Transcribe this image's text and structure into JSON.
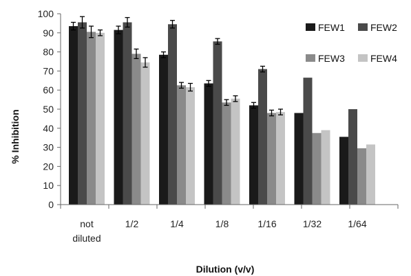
{
  "chart_data": {
    "type": "bar",
    "title": "",
    "xlabel": "Dilution (v/v)",
    "ylabel": "% Inhibition",
    "ylim": [
      0,
      100
    ],
    "yticks": [
      0,
      10,
      20,
      30,
      40,
      50,
      60,
      70,
      80,
      90,
      100
    ],
    "grid": false,
    "legend_position": "top-right",
    "categories": [
      [
        "not",
        "diluted"
      ],
      [
        "1/2"
      ],
      [
        "1/4"
      ],
      [
        "1/8"
      ],
      [
        "1/16"
      ],
      [
        "1/32"
      ],
      [
        "1/64"
      ]
    ],
    "series": [
      {
        "name": "FEW1",
        "color": "#1a1a1a",
        "values": [
          93.5,
          91.5,
          78.5,
          63.5,
          52,
          48,
          35.5
        ],
        "errors": [
          2,
          2,
          1.5,
          1.5,
          1.5,
          null,
          null
        ]
      },
      {
        "name": "FEW2",
        "color": "#4a4a4a",
        "values": [
          95.5,
          95.5,
          94.5,
          85.5,
          71,
          66.5,
          50
        ],
        "errors": [
          3,
          2.5,
          2,
          1.5,
          1.5,
          null,
          null
        ]
      },
      {
        "name": "FEW3",
        "color": "#8a8a8a",
        "values": [
          90.5,
          79,
          62.5,
          53.5,
          48,
          37.5,
          29.5
        ],
        "errors": [
          3,
          2.5,
          1.5,
          1.5,
          1.5,
          null,
          null
        ]
      },
      {
        "name": "FEW4",
        "color": "#c4c4c4",
        "values": [
          90,
          74.5,
          61.5,
          55.5,
          48.5,
          39,
          31.5
        ],
        "errors": [
          1.5,
          2.5,
          2,
          1.5,
          1.5,
          null,
          null
        ]
      }
    ]
  }
}
